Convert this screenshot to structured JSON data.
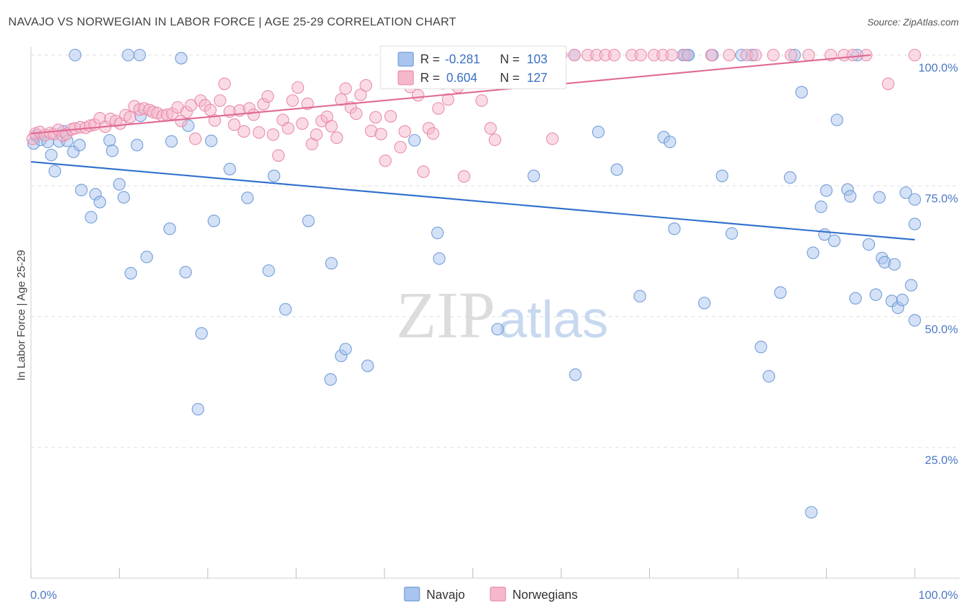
{
  "header": {
    "title": "NAVAJO VS NORWEGIAN IN LABOR FORCE | AGE 25-29 CORRELATION CHART",
    "source": "Source: ZipAtlas.com"
  },
  "watermark": {
    "zip": "ZIP",
    "atlas": "atlas"
  },
  "legend_top": {
    "rows": [
      {
        "r_label": "R =",
        "r_value": "-0.281",
        "n_label": "N =",
        "n_value": "103"
      },
      {
        "r_label": "R =",
        "r_value": "0.604",
        "n_label": "N =",
        "n_value": "127"
      }
    ]
  },
  "legend_bottom": {
    "items": [
      "Navajo",
      "Norwegians"
    ]
  },
  "colors": {
    "navajo_fill": "#a9c4ee",
    "navajo_stroke": "#6f9bd8",
    "navajo_line": "#2f6fce",
    "norwegian_fill": "#f5b8cb",
    "norwegian_stroke": "#e98aa8",
    "norwegian_line": "#e06a93",
    "tick_text": "#4a78c4",
    "grid": "#dddddd"
  },
  "chart_data": {
    "type": "scatter",
    "title": "NAVAJO VS NORWEGIAN IN LABOR FORCE | AGE 25-29 CORRELATION CHART",
    "xlabel": "",
    "ylabel": "In Labor Force | Age 25-29",
    "xlim": [
      0,
      100
    ],
    "ylim": [
      0,
      100
    ],
    "x_tick_labels": [
      "0.0%",
      "100.0%"
    ],
    "y_ticks": [
      25,
      50,
      75,
      100
    ],
    "y_tick_labels": [
      "25.0%",
      "50.0%",
      "75.0%",
      "100.0%"
    ],
    "grid": true,
    "legend_placement": "top-center",
    "series": [
      {
        "name": "Navajo",
        "r": -0.281,
        "n": 103,
        "trend": {
          "x": [
            0,
            100
          ],
          "y": [
            79.6,
            64.7
          ]
        },
        "points": [
          [
            0.3,
            83.1
          ],
          [
            0.6,
            84.6
          ],
          [
            1.1,
            83.8
          ],
          [
            1.9,
            83.4
          ],
          [
            2.3,
            80.9
          ],
          [
            2.7,
            77.8
          ],
          [
            3.2,
            83.5
          ],
          [
            3.7,
            85.4
          ],
          [
            4.1,
            83.6
          ],
          [
            4.8,
            81.5
          ],
          [
            5.5,
            82.8
          ],
          [
            5.7,
            74.2
          ],
          [
            6.8,
            69.0
          ],
          [
            7.3,
            73.4
          ],
          [
            7.8,
            71.9
          ],
          [
            8.9,
            83.7
          ],
          [
            9.2,
            81.7
          ],
          [
            10.0,
            75.3
          ],
          [
            10.5,
            72.8
          ],
          [
            11.3,
            58.3
          ],
          [
            12.0,
            82.8
          ],
          [
            12.4,
            88.4
          ],
          [
            13.1,
            61.4
          ],
          [
            15.7,
            66.8
          ],
          [
            15.9,
            83.5
          ],
          [
            17.5,
            58.5
          ],
          [
            17.8,
            86.5
          ],
          [
            18.9,
            32.3
          ],
          [
            19.3,
            46.8
          ],
          [
            20.4,
            83.6
          ],
          [
            20.7,
            68.3
          ],
          [
            22.5,
            78.2
          ],
          [
            24.5,
            72.7
          ],
          [
            26.9,
            58.8
          ],
          [
            27.5,
            76.9
          ],
          [
            28.8,
            51.4
          ],
          [
            31.4,
            68.3
          ],
          [
            34.0,
            60.2
          ],
          [
            33.9,
            38.0
          ],
          [
            35.1,
            42.5
          ],
          [
            35.6,
            43.8
          ],
          [
            38.1,
            40.6
          ],
          [
            41.2,
            100.0
          ],
          [
            42.1,
            100.0
          ],
          [
            43.4,
            83.7
          ],
          [
            46.0,
            66.0
          ],
          [
            46.2,
            61.1
          ],
          [
            52.8,
            47.6
          ],
          [
            52.9,
            100.0
          ],
          [
            56.3,
            100.0
          ],
          [
            56.9,
            76.9
          ],
          [
            61.5,
            100.0
          ],
          [
            61.6,
            38.9
          ],
          [
            64.2,
            85.3
          ],
          [
            66.3,
            78.1
          ],
          [
            68.9,
            53.9
          ],
          [
            71.6,
            84.3
          ],
          [
            72.3,
            83.4
          ],
          [
            72.8,
            66.8
          ],
          [
            73.8,
            100.0
          ],
          [
            74.3,
            100.0
          ],
          [
            74.4,
            100.0
          ],
          [
            76.2,
            52.6
          ],
          [
            77.1,
            100.0
          ],
          [
            78.2,
            76.9
          ],
          [
            79.3,
            65.9
          ],
          [
            80.4,
            100.0
          ],
          [
            81.6,
            100.0
          ],
          [
            82.6,
            44.2
          ],
          [
            83.5,
            38.6
          ],
          [
            84.8,
            54.6
          ],
          [
            85.9,
            76.6
          ],
          [
            86.4,
            100.0
          ],
          [
            87.2,
            92.9
          ],
          [
            88.3,
            12.6
          ],
          [
            88.5,
            62.2
          ],
          [
            89.4,
            71.0
          ],
          [
            89.8,
            65.7
          ],
          [
            90.0,
            74.1
          ],
          [
            90.9,
            64.5
          ],
          [
            91.2,
            87.6
          ],
          [
            92.4,
            74.3
          ],
          [
            92.7,
            73.0
          ],
          [
            93.3,
            53.5
          ],
          [
            93.5,
            100.0
          ],
          [
            94.8,
            63.8
          ],
          [
            95.6,
            54.2
          ],
          [
            96.0,
            72.8
          ],
          [
            96.3,
            61.2
          ],
          [
            96.6,
            60.4
          ],
          [
            97.4,
            53.0
          ],
          [
            97.7,
            60.0
          ],
          [
            98.1,
            51.7
          ],
          [
            98.6,
            53.2
          ],
          [
            99.0,
            73.7
          ],
          [
            99.6,
            56.0
          ],
          [
            100.0,
            49.3
          ],
          [
            100.0,
            67.7
          ],
          [
            100.0,
            72.4
          ],
          [
            5.0,
            100.0
          ],
          [
            11.0,
            100.0
          ],
          [
            12.3,
            100.0
          ],
          [
            17.0,
            99.4
          ]
        ]
      },
      {
        "name": "Norwegians",
        "r": 0.604,
        "n": 127,
        "trend": {
          "x": [
            0,
            95
          ],
          "y": [
            85.0,
            100.0
          ]
        },
        "points": [
          [
            0.2,
            84.0
          ],
          [
            0.5,
            85.0
          ],
          [
            1.0,
            85.3
          ],
          [
            1.6,
            84.7
          ],
          [
            2.2,
            85.1
          ],
          [
            2.6,
            84.9
          ],
          [
            3.1,
            85.7
          ],
          [
            3.6,
            84.6
          ],
          [
            4.0,
            84.9
          ],
          [
            4.6,
            85.8
          ],
          [
            5.0,
            86.0
          ],
          [
            5.6,
            86.2
          ],
          [
            6.2,
            86.1
          ],
          [
            6.7,
            86.5
          ],
          [
            7.2,
            86.7
          ],
          [
            7.8,
            87.9
          ],
          [
            8.4,
            86.3
          ],
          [
            9.0,
            87.8
          ],
          [
            9.6,
            87.4
          ],
          [
            10.1,
            86.9
          ],
          [
            10.7,
            88.5
          ],
          [
            11.2,
            88.1
          ],
          [
            11.7,
            90.2
          ],
          [
            12.3,
            89.6
          ],
          [
            12.8,
            89.8
          ],
          [
            13.4,
            89.5
          ],
          [
            13.8,
            89.1
          ],
          [
            14.3,
            88.9
          ],
          [
            14.9,
            88.4
          ],
          [
            15.4,
            88.6
          ],
          [
            16.0,
            88.8
          ],
          [
            16.6,
            90.0
          ],
          [
            17.0,
            87.4
          ],
          [
            17.6,
            89.1
          ],
          [
            18.1,
            90.4
          ],
          [
            18.6,
            84.0
          ],
          [
            19.2,
            91.3
          ],
          [
            19.7,
            90.4
          ],
          [
            20.3,
            89.5
          ],
          [
            20.8,
            87.5
          ],
          [
            21.4,
            91.3
          ],
          [
            21.9,
            94.5
          ],
          [
            22.5,
            89.2
          ],
          [
            23.0,
            86.7
          ],
          [
            23.6,
            89.4
          ],
          [
            24.1,
            85.4
          ],
          [
            24.7,
            89.8
          ],
          [
            25.2,
            88.6
          ],
          [
            25.8,
            85.2
          ],
          [
            26.3,
            90.6
          ],
          [
            26.8,
            92.1
          ],
          [
            27.4,
            84.8
          ],
          [
            28.0,
            80.8
          ],
          [
            28.5,
            87.6
          ],
          [
            29.1,
            86.0
          ],
          [
            29.6,
            91.3
          ],
          [
            30.2,
            93.8
          ],
          [
            30.7,
            86.9
          ],
          [
            31.3,
            90.7
          ],
          [
            31.8,
            83.0
          ],
          [
            32.3,
            84.8
          ],
          [
            32.9,
            87.4
          ],
          [
            33.5,
            88.2
          ],
          [
            34.0,
            86.4
          ],
          [
            34.6,
            84.2
          ],
          [
            35.1,
            91.5
          ],
          [
            35.6,
            93.6
          ],
          [
            36.2,
            90.0
          ],
          [
            36.8,
            88.8
          ],
          [
            37.3,
            92.4
          ],
          [
            37.9,
            94.2
          ],
          [
            38.5,
            85.5
          ],
          [
            39.0,
            88.1
          ],
          [
            39.6,
            84.9
          ],
          [
            40.1,
            79.8
          ],
          [
            40.7,
            88.3
          ],
          [
            41.2,
            96.0
          ],
          [
            41.8,
            82.4
          ],
          [
            42.3,
            85.4
          ],
          [
            42.9,
            93.9
          ],
          [
            43.4,
            99.0
          ],
          [
            43.8,
            92.3
          ],
          [
            44.4,
            77.7
          ],
          [
            45.0,
            86.0
          ],
          [
            45.5,
            85.0
          ],
          [
            46.1,
            89.8
          ],
          [
            46.6,
            94.6
          ],
          [
            47.2,
            91.5
          ],
          [
            47.8,
            99.0
          ],
          [
            48.3,
            93.9
          ],
          [
            49.0,
            76.8
          ],
          [
            50.0,
            100.0
          ],
          [
            51.0,
            91.3
          ],
          [
            52.0,
            86.0
          ],
          [
            52.5,
            83.8
          ],
          [
            53.0,
            100.0
          ],
          [
            54.0,
            97.0
          ],
          [
            55.0,
            96.0
          ],
          [
            56.0,
            95.2
          ],
          [
            57.0,
            100.0
          ],
          [
            58.0,
            97.0
          ],
          [
            59.0,
            84.0
          ],
          [
            60.0,
            100.0
          ],
          [
            61.5,
            100.0
          ],
          [
            63.0,
            100.0
          ],
          [
            64.0,
            100.0
          ],
          [
            65.0,
            100.0
          ],
          [
            66.0,
            100.0
          ],
          [
            68.0,
            100.0
          ],
          [
            69.0,
            100.0
          ],
          [
            70.5,
            100.0
          ],
          [
            71.5,
            100.0
          ],
          [
            72.5,
            100.0
          ],
          [
            74.0,
            100.0
          ],
          [
            77.0,
            100.0
          ],
          [
            79.0,
            100.0
          ],
          [
            81.0,
            100.0
          ],
          [
            82.0,
            100.0
          ],
          [
            84.0,
            100.0
          ],
          [
            86.0,
            100.0
          ],
          [
            88.0,
            100.0
          ],
          [
            90.5,
            100.0
          ],
          [
            92.0,
            100.0
          ],
          [
            93.0,
            100.0
          ],
          [
            94.5,
            100.0
          ],
          [
            97.0,
            94.5
          ],
          [
            100.0,
            100.0
          ]
        ]
      }
    ]
  }
}
